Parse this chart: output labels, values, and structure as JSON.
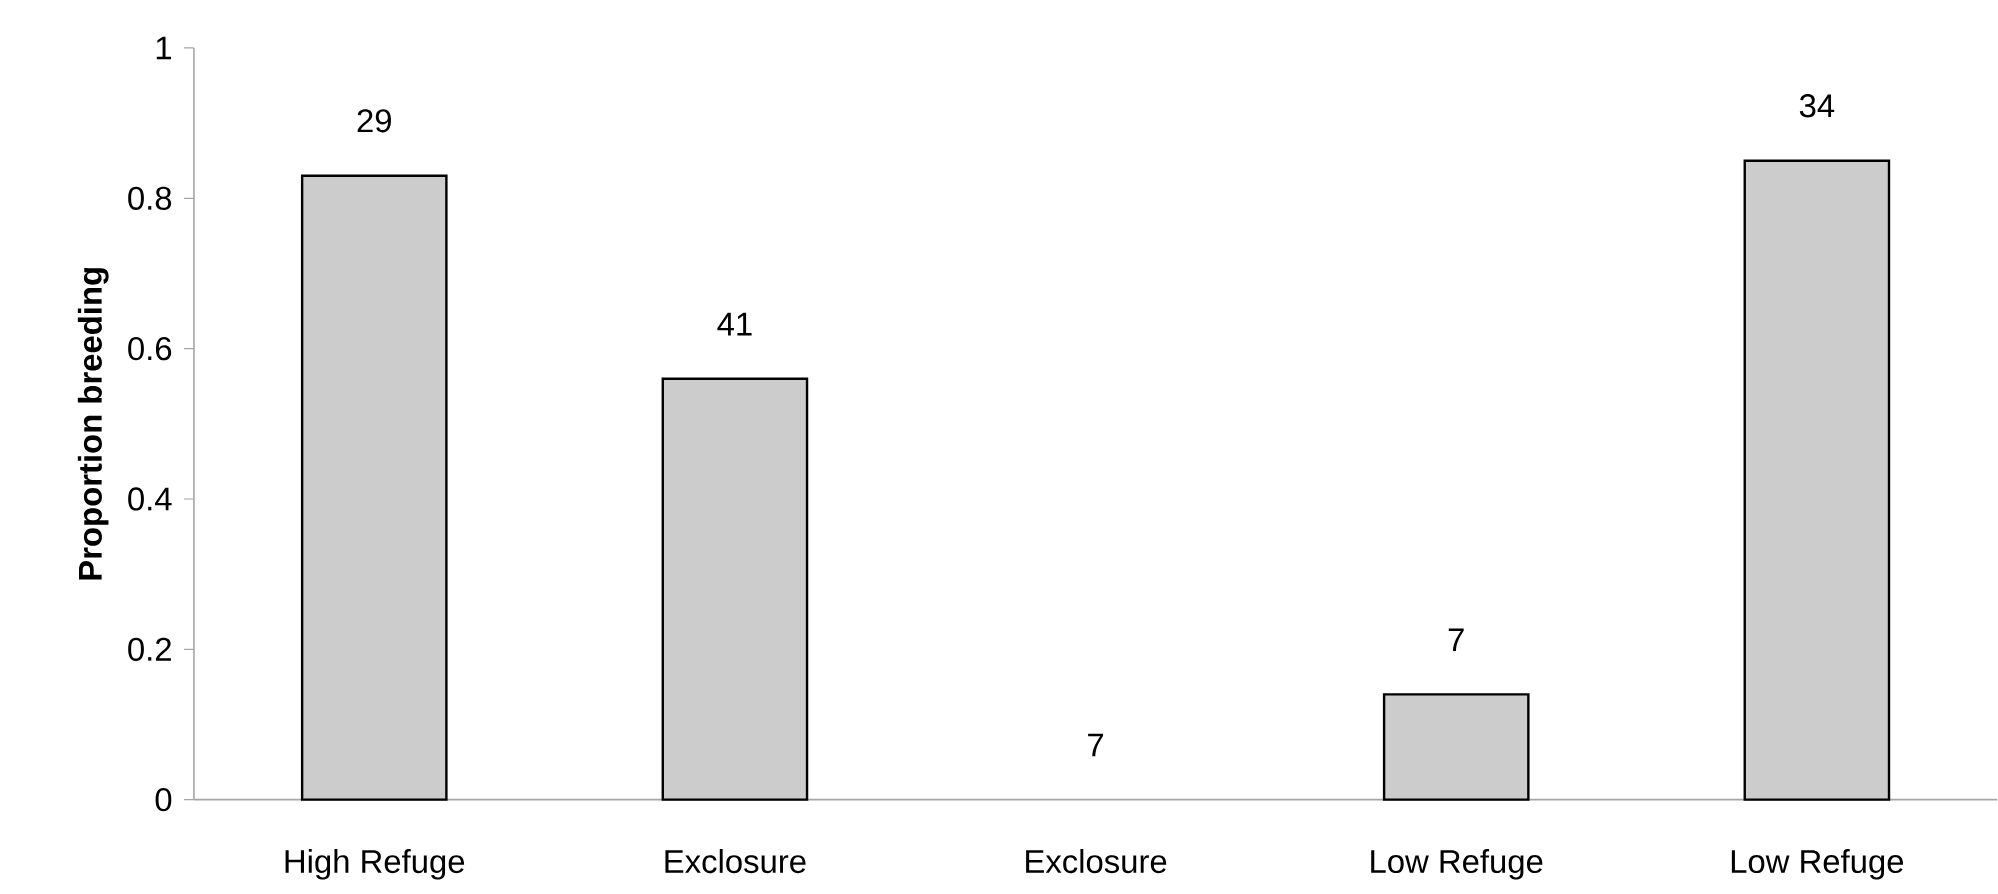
{
  "chart_data": {
    "type": "bar",
    "ylabel": "Proportion breeding",
    "categories": [
      "High Refuge",
      "Exclosure",
      "Exclosure",
      "Low Refuge",
      "Low Refuge"
    ],
    "values": [
      0.83,
      0.56,
      0,
      0.14,
      0.85
    ],
    "annotations": [
      "29",
      "41",
      "7",
      "7",
      "34"
    ],
    "color": "#cccccc",
    "ylim": [
      0,
      1
    ],
    "yticks": [
      0,
      0.2,
      0.4,
      0.6,
      0.8,
      1
    ]
  }
}
